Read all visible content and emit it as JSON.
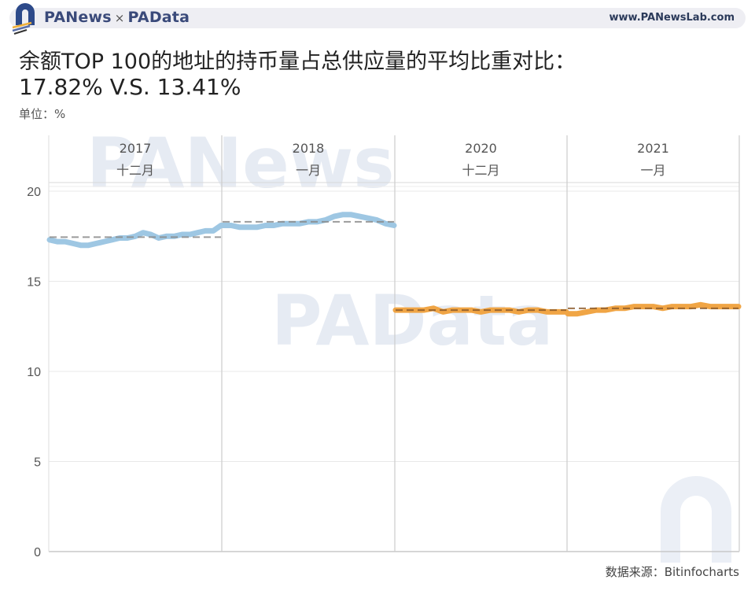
{
  "header": {
    "brand_left": "PANews",
    "brand_sep": "×",
    "brand_right": "PAData",
    "website": "www.PANewsLab.com"
  },
  "title": "余额TOP 100的地址的持币量占总供应量的平均比重对比：",
  "subtitle": "17.82% V.S. 13.41%",
  "unit_label": "单位：%",
  "source": "数据来源：Bitinfocharts",
  "watermarks": [
    "PANews",
    "PAData"
  ],
  "colors": {
    "series_2017_2018": "#9ec7e3",
    "series_2020_2021": "#f0a545",
    "avg_line_blue_panel": "#8a8a8a",
    "avg_line_orange_panel": "#8a5a2a",
    "grid": "#e8e8e8",
    "panel_border": "#cccccc",
    "brand": "#3a4a7a"
  },
  "chart_data": {
    "type": "line",
    "title": "余额TOP 100的地址的持币量占总供应量的平均比重对比：17.82% V.S. 13.41%",
    "ylabel": "%",
    "xlabel": "",
    "ylim": [
      0,
      20
    ],
    "yticks": [
      0,
      5,
      10,
      15,
      20
    ],
    "grid": true,
    "legend": "none",
    "panels": [
      {
        "year": "2017",
        "month": "十二月"
      },
      {
        "year": "2018",
        "month": "一月"
      },
      {
        "year": "2020",
        "month": "十二月"
      },
      {
        "year": "2021",
        "month": "一月"
      }
    ],
    "series": [
      {
        "name": "2017年12月",
        "panel": 0,
        "color": "#9ec7e3",
        "average": 17.45,
        "values": [
          17.3,
          17.2,
          17.2,
          17.1,
          17.0,
          17.0,
          17.1,
          17.2,
          17.3,
          17.4,
          17.4,
          17.5,
          17.7,
          17.6,
          17.4,
          17.5,
          17.5,
          17.6,
          17.6,
          17.7,
          17.8,
          17.8,
          18.1
        ]
      },
      {
        "name": "2018年1月",
        "panel": 1,
        "color": "#9ec7e3",
        "average": 18.3,
        "values": [
          18.1,
          18.1,
          18.0,
          18.0,
          18.0,
          18.1,
          18.1,
          18.2,
          18.2,
          18.2,
          18.3,
          18.3,
          18.4,
          18.6,
          18.7,
          18.7,
          18.6,
          18.5,
          18.4,
          18.2,
          18.1
        ]
      },
      {
        "name": "2020年12月",
        "panel": 2,
        "color": "#f0a545",
        "average": 13.4,
        "values": [
          13.4,
          13.4,
          13.4,
          13.4,
          13.5,
          13.3,
          13.4,
          13.4,
          13.4,
          13.3,
          13.4,
          13.4,
          13.4,
          13.3,
          13.4,
          13.4,
          13.3,
          13.3,
          13.3
        ]
      },
      {
        "name": "2021年1月",
        "panel": 3,
        "color": "#f0a545",
        "average": 13.5,
        "values": [
          13.2,
          13.2,
          13.3,
          13.4,
          13.4,
          13.5,
          13.5,
          13.6,
          13.6,
          13.6,
          13.5,
          13.6,
          13.6,
          13.6,
          13.7,
          13.6,
          13.6,
          13.6,
          13.6
        ]
      }
    ],
    "summary": {
      "average_2017_2018": "17.82%",
      "average_2020_2021": "13.41%"
    }
  }
}
